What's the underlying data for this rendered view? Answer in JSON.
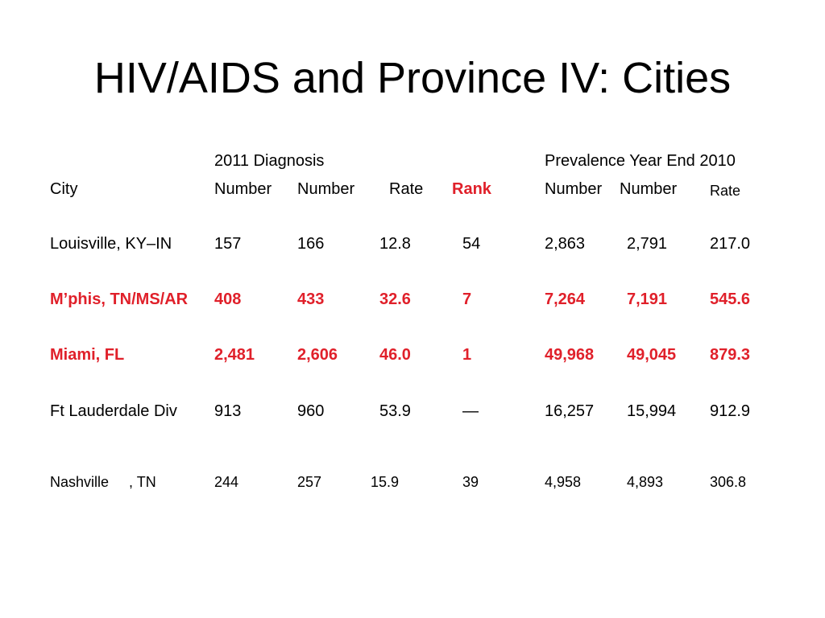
{
  "title": "HIV/AIDS and Province IV: Cities",
  "group_headers": {
    "diagnosis": "2011 Diagnosis",
    "prevalence": "Prevalence Year End 2010"
  },
  "columns": {
    "city": "City",
    "diag_number_1": "Number",
    "diag_number_2": "Number",
    "diag_rate": "Rate",
    "diag_rank": "Rank",
    "prev_number_1": "Number",
    "prev_number_2": "Number",
    "prev_rate": "Rate"
  },
  "highlight_color": "#e0202a",
  "rows": [
    {
      "city": "Louisville, KY–IN",
      "diag_number_1": "157",
      "diag_number_2": "166",
      "diag_rate": "12.8",
      "diag_rank": "54",
      "prev_number_1": "2,863",
      "prev_number_2": "2,791",
      "prev_rate": "217.0",
      "highlighted": false
    },
    {
      "city": "M’phis, TN/MS/AR",
      "diag_number_1": "408",
      "diag_number_2": "433",
      "diag_rate": "32.6",
      "diag_rank": "7",
      "prev_number_1": "7,264",
      "prev_number_2": "7,191",
      "prev_rate": "545.6",
      "highlighted": true
    },
    {
      "city": "Miami, FL",
      "diag_number_1": "2,481",
      "diag_number_2": "2,606",
      "diag_rate": "46.0",
      "diag_rank": "1",
      "prev_number_1": "49,968",
      "prev_number_2": "49,045",
      "prev_rate": "879.3",
      "highlighted": true
    },
    {
      "city": "Ft Lauderdale Div",
      "diag_number_1": "913",
      "diag_number_2": "960",
      "diag_rate": "53.9",
      "diag_rank": "—",
      "prev_number_1": "16,257",
      "prev_number_2": "15,994",
      "prev_rate": "912.9",
      "highlighted": false
    },
    {
      "city": "Nashville     , TN",
      "diag_number_1": "244",
      "diag_number_2": "257",
      "diag_rate": "15.9",
      "diag_rank": "39",
      "prev_number_1": "4,958",
      "prev_number_2": "4,893",
      "prev_rate": "306.8",
      "highlighted": false
    }
  ]
}
